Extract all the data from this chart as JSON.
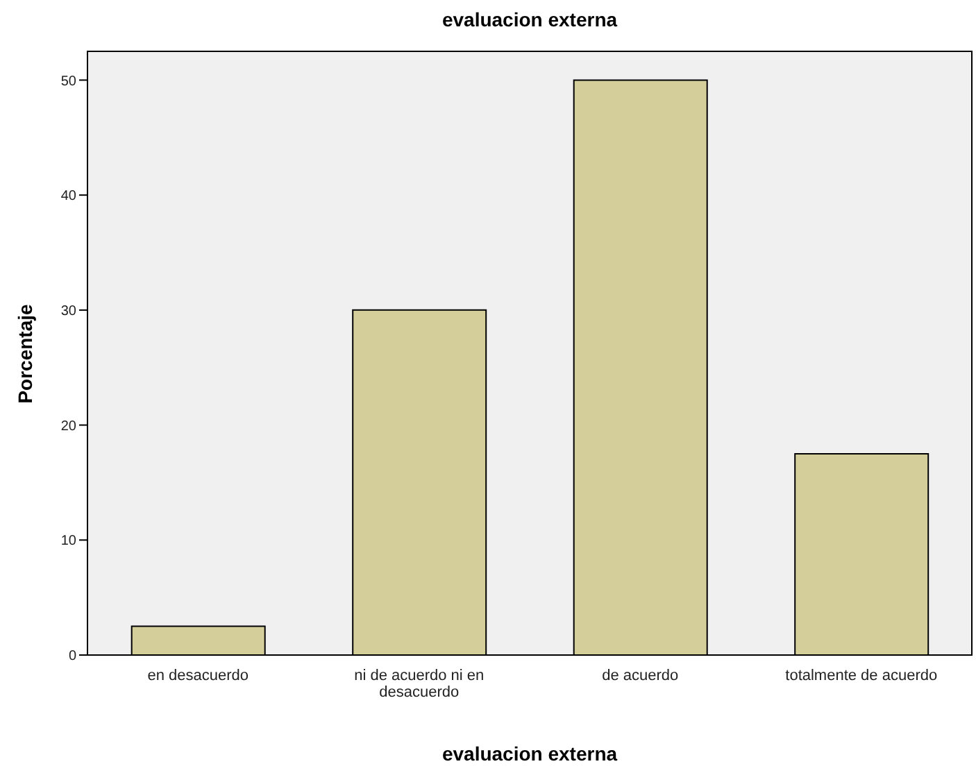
{
  "chart_data": {
    "type": "bar",
    "title": "evaluacion externa",
    "xlabel": "evaluacion externa",
    "ylabel": "Porcentaje",
    "categories": [
      "en desacuerdo",
      "ni de acuerdo ni en desacuerdo",
      "de acuerdo",
      "totalmente de acuerdo"
    ],
    "values": [
      2.5,
      30,
      50,
      17.5
    ],
    "color": "#d3ce9a",
    "ylim": [
      0,
      52.5
    ],
    "yticks": [
      0,
      10,
      20,
      30,
      40,
      50
    ]
  }
}
